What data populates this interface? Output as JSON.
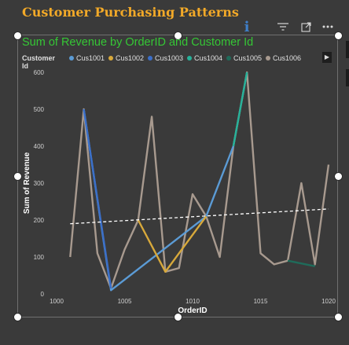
{
  "page": {
    "title": "Customer Purchasing Patterns"
  },
  "toolbar": {
    "info": "i"
  },
  "icons": [
    "info-icon",
    "filter-icon",
    "focus-mode-icon",
    "more-options-icon",
    "chevron-right-icon"
  ],
  "chart_data": {
    "type": "line",
    "title": "Sum of Revenue by OrderID and Customer Id",
    "xlabel": "OrderID",
    "ylabel": "Sum of Revenue",
    "xlim": [
      1000,
      1020
    ],
    "ylim": [
      0,
      600
    ],
    "xticks": [
      1000,
      1005,
      1010,
      1015,
      1020
    ],
    "yticks": [
      0,
      100,
      200,
      300,
      400,
      500,
      600
    ],
    "legend": {
      "title": "Customer Id",
      "position": "top-left"
    },
    "grid": false,
    "series": [
      {
        "name": "Cus1001",
        "color": "#5b9bd5",
        "x": [
          1002,
          1004,
          1011,
          1013
        ],
        "y": [
          500,
          10,
          210,
          400
        ]
      },
      {
        "name": "Cus1002",
        "color": "#d8a93b",
        "x": [
          1006,
          1008,
          1011
        ],
        "y": [
          200,
          60,
          210
        ]
      },
      {
        "name": "Cus1003",
        "color": "#3b6fc9",
        "x": [
          1002,
          1004
        ],
        "y": [
          500,
          15
        ]
      },
      {
        "name": "Cus1004",
        "color": "#26b29a",
        "x": [
          1013,
          1014
        ],
        "y": [
          400,
          600
        ]
      },
      {
        "name": "Cus1005",
        "color": "#1f6b5a",
        "x": [
          1017,
          1019
        ],
        "y": [
          90,
          75
        ]
      },
      {
        "name": "Cus1006",
        "color": "#a89a8f",
        "x": [
          1001,
          1002,
          1003,
          1004,
          1005,
          1006,
          1007,
          1008,
          1009,
          1010,
          1011,
          1012,
          1013,
          1014,
          1015,
          1016,
          1017,
          1018,
          1019,
          1020
        ],
        "y": [
          100,
          500,
          110,
          15,
          120,
          200,
          480,
          60,
          70,
          270,
          210,
          100,
          400,
          600,
          110,
          80,
          90,
          300,
          80,
          350
        ]
      }
    ],
    "trend_line": {
      "x": [
        1001,
        1020
      ],
      "y": [
        190,
        230
      ],
      "color": "#ffffff",
      "style": "dashed"
    }
  },
  "colors": {
    "background": "#3a3a3a",
    "title": "#f2a928",
    "chart_title": "#35c735"
  }
}
